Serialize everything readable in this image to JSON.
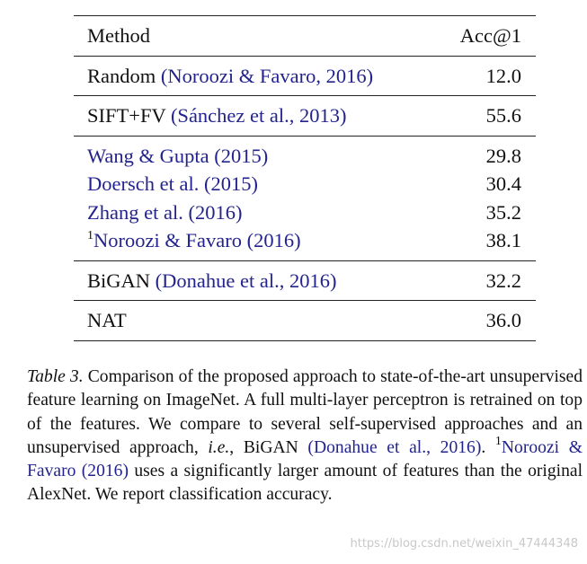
{
  "table": {
    "header": [
      "Method",
      "Acc@1"
    ],
    "groups": [
      [
        {
          "name": "Random",
          "cite": "(Noroozi & Favaro, 2016)",
          "value": "12.0"
        }
      ],
      [
        {
          "name": "SIFT+FV",
          "cite": "(Sánchez et al., 2013)",
          "value": "55.6"
        }
      ],
      [
        {
          "cite": "Wang & Gupta (2015)",
          "value": "29.8"
        },
        {
          "cite": "Doersch et al. (2015)",
          "value": "30.4"
        },
        {
          "cite": "Zhang et al. (2016)",
          "value": "35.2"
        },
        {
          "sup": "1",
          "cite": "Noroozi & Favaro (2016)",
          "value": "38.1"
        }
      ],
      [
        {
          "name": "BiGAN",
          "cite": "(Donahue et al., 2016)",
          "value": "32.2"
        }
      ],
      [
        {
          "name": "NAT",
          "value": "36.0"
        }
      ]
    ]
  },
  "caption": [
    {
      "text": "Table 3.",
      "style": "italic"
    },
    {
      "text": " Comparison of the proposed approach to state-of-the-art unsupervised feature learning on ImageNet.  A full multi-layer perceptron is retrained on top of the features. We compare to several self-supervised approaches and an unsupervised approach, ",
      "style": "normal"
    },
    {
      "text": "i.e.",
      "style": "italic"
    },
    {
      "text": ", BiGAN ",
      "style": "normal"
    },
    {
      "text": "(Donahue et al., 2016)",
      "style": "cite"
    },
    {
      "text": ".  ",
      "style": "normal"
    },
    {
      "text": "1",
      "style": "sup"
    },
    {
      "text": "Noroozi & Favaro (2016)",
      "style": "cite"
    },
    {
      "text": " uses a significantly larger amount of features than the original AlexNet. We report classification accuracy.",
      "style": "normal"
    }
  ],
  "watermark": "https://blog.csdn.net/weixin_47444348"
}
